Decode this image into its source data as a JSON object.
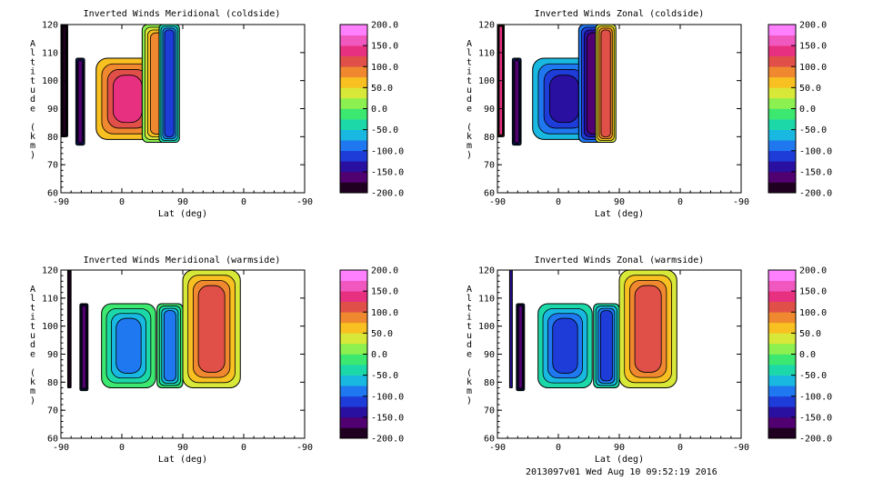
{
  "footer": "2013097v01 Wed Aug 10 09:52:19 2016",
  "colors": {
    "scale": [
      "#200020",
      "#500070",
      "#2a10a0",
      "#1e3cd8",
      "#1f78f0",
      "#19b8e0",
      "#1cd8a8",
      "#3ce870",
      "#8cf050",
      "#d8e838",
      "#f8c020",
      "#f08830",
      "#e05048",
      "#e83080",
      "#f058c0",
      "#ff80ff"
    ],
    "contour_line": "#000000",
    "background": "#ffffff"
  },
  "chart_data": [
    {
      "type": "heatmap",
      "title": "Inverted Winds Meridional (coldside)",
      "xlabel": "Lat (deg)",
      "ylabel": "Altitude (km)",
      "xticks": [
        "-90",
        "0",
        "90",
        "0",
        "-90"
      ],
      "yticks": [
        "60",
        "70",
        "80",
        "90",
        "100",
        "110",
        "120"
      ],
      "ylim": [
        60,
        120
      ],
      "colorbar": {
        "min": -200,
        "max": 200,
        "ticks": [
          "200.0",
          "150.0",
          "100.0",
          "50.0",
          "0.0",
          "-50.0",
          "-100.0",
          "-150.0",
          "-200.0"
        ]
      },
      "blobs": [
        {
          "x": [
            -90,
            -80
          ],
          "y": [
            80,
            120
          ],
          "value": -150
        },
        {
          "x": [
            -68,
            -55
          ],
          "y": [
            77,
            108
          ],
          "value": -90
        },
        {
          "x": [
            -38,
            55
          ],
          "y": [
            79,
            108
          ],
          "value": 60
        },
        {
          "x": [
            30,
            75
          ],
          "y": [
            78,
            120
          ],
          "value": 10
        },
        {
          "x": [
            55,
            85
          ],
          "y": [
            78,
            120
          ],
          "value": -30
        }
      ]
    },
    {
      "type": "heatmap",
      "title": "Inverted Winds Zonal (coldside)",
      "xlabel": "Lat (deg)",
      "ylabel": "Altitude (km)",
      "xticks": [
        "-90",
        "0",
        "90",
        "0",
        "-90"
      ],
      "yticks": [
        "60",
        "70",
        "80",
        "90",
        "100",
        "110",
        "120"
      ],
      "ylim": [
        60,
        120
      ],
      "colorbar": {
        "min": -200,
        "max": 200,
        "ticks": [
          "200.0",
          "150.0",
          "100.0",
          "50.0",
          "0.0",
          "-50.0",
          "-100.0",
          "-150.0",
          "-200.0"
        ]
      },
      "blobs": [
        {
          "x": [
            -90,
            -80
          ],
          "y": [
            80,
            120
          ],
          "value": 60
        },
        {
          "x": [
            -68,
            -55
          ],
          "y": [
            77,
            108
          ],
          "value": -90
        },
        {
          "x": [
            -38,
            55
          ],
          "y": [
            79,
            108
          ],
          "value": -70
        },
        {
          "x": [
            30,
            75
          ],
          "y": [
            78,
            120
          ],
          "value": -100
        },
        {
          "x": [
            55,
            85
          ],
          "y": [
            78,
            120
          ],
          "value": 40
        }
      ]
    },
    {
      "type": "heatmap",
      "title": "Inverted Winds Meridional (warmside)",
      "xlabel": "Lat (deg)",
      "ylabel": "Altitude (km)",
      "xticks": [
        "-90",
        "0",
        "90",
        "0",
        "-90"
      ],
      "yticks": [
        "60",
        "70",
        "80",
        "90",
        "100",
        "110",
        "120"
      ],
      "ylim": [
        60,
        120
      ],
      "colorbar": {
        "min": -200,
        "max": 200,
        "ticks": [
          "200.0",
          "150.0",
          "100.0",
          "50.0",
          "0.0",
          "-50.0",
          "-100.0",
          "-150.0",
          "-200.0"
        ]
      },
      "blobs": [
        {
          "x": [
            -80,
            -75
          ],
          "y": [
            78,
            120
          ],
          "value": -150
        },
        {
          "x": [
            -62,
            -50
          ],
          "y": [
            77,
            108
          ],
          "value": -100
        },
        {
          "x": [
            -30,
            50
          ],
          "y": [
            78,
            108
          ],
          "value": -10
        },
        {
          "x": [
            52,
            90
          ],
          "y": [
            78,
            108
          ],
          "value": -20
        },
        {
          "x": [
            90,
            175
          ],
          "y": [
            78,
            120
          ],
          "value": 30
        }
      ]
    },
    {
      "type": "heatmap",
      "title": "Inverted Winds Zonal (warmside)",
      "xlabel": "Lat (deg)",
      "ylabel": "Altitude (km)",
      "xticks": [
        "-90",
        "0",
        "90",
        "0",
        "-90"
      ],
      "yticks": [
        "60",
        "70",
        "80",
        "90",
        "100",
        "110",
        "120"
      ],
      "ylim": [
        60,
        120
      ],
      "colorbar": {
        "min": -200,
        "max": 200,
        "ticks": [
          "200.0",
          "150.0",
          "100.0",
          "50.0",
          "0.0",
          "-50.0",
          "-100.0",
          "-150.0",
          "-200.0"
        ]
      },
      "blobs": [
        {
          "x": [
            -72,
            -68
          ],
          "y": [
            78,
            120
          ],
          "value": -120
        },
        {
          "x": [
            -62,
            -50
          ],
          "y": [
            77,
            108
          ],
          "value": -100
        },
        {
          "x": [
            -30,
            50
          ],
          "y": [
            78,
            108
          ],
          "value": -30
        },
        {
          "x": [
            52,
            90
          ],
          "y": [
            78,
            108
          ],
          "value": -50
        },
        {
          "x": [
            90,
            175
          ],
          "y": [
            78,
            120
          ],
          "value": 40
        }
      ]
    }
  ]
}
